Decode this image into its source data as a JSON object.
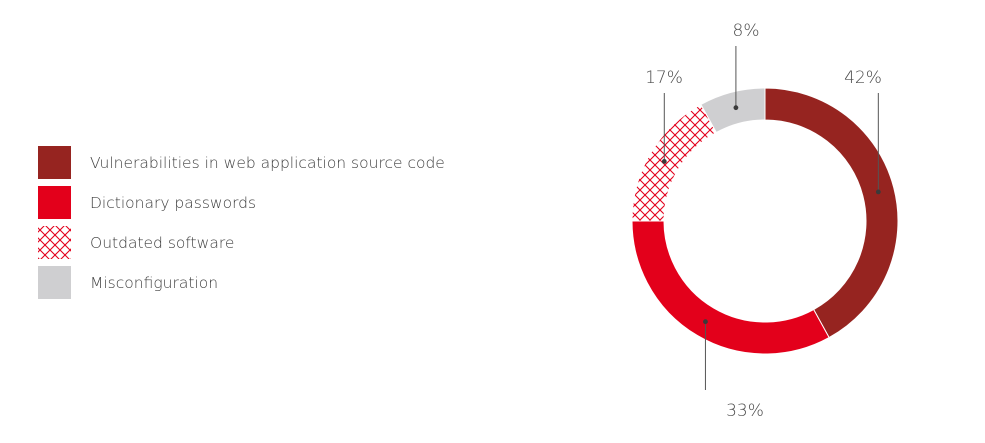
{
  "chart_data": {
    "type": "pie",
    "variant": "donut",
    "categories": [
      "Vulnerabilities in web application source code",
      "Dictionary passwords",
      "Outdated software",
      "Misconfiguration"
    ],
    "values": [
      42,
      33,
      17,
      8
    ],
    "value_labels": [
      "42%",
      "33%",
      "17%",
      "8%"
    ],
    "colors": [
      "#962420",
      "#e3001b",
      "hatch-red",
      "#cfcfd1"
    ],
    "legend_position": "left"
  }
}
